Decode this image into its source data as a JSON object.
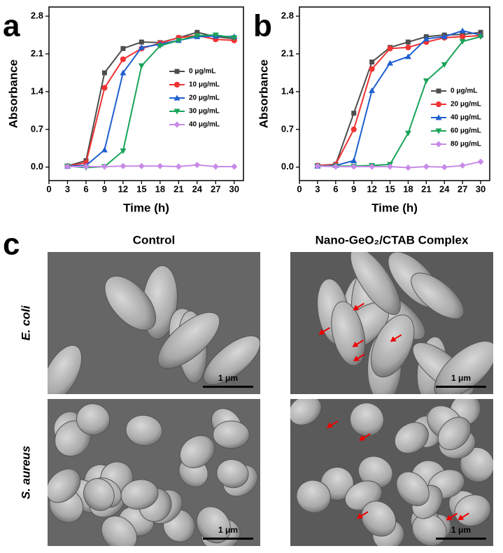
{
  "chart_data": [
    {
      "type": "line",
      "panel_label": "a",
      "xlabel": "Time (h)",
      "ylabel": "Absorbance",
      "x": [
        3,
        6,
        9,
        12,
        15,
        18,
        21,
        24,
        27,
        30
      ],
      "xlim": [
        0,
        31.5
      ],
      "xticks": [
        0,
        3,
        6,
        9,
        12,
        15,
        18,
        21,
        24,
        27,
        30
      ],
      "ylim": [
        -0.25,
        2.97
      ],
      "yticks": [
        {
          "value": 0,
          "label": "0.0"
        },
        0.7,
        1.4,
        2.1,
        2.8
      ],
      "legend": "center right",
      "series": [
        {
          "name": "0 μg/mL",
          "color": "#4d4d4d",
          "marker": "s",
          "values": [
            0.02,
            0.12,
            1.75,
            2.2,
            2.32,
            2.31,
            2.4,
            2.5,
            2.42,
            2.38
          ]
        },
        {
          "name": "10 μg/mL",
          "color": "#f03333",
          "marker": "o",
          "values": [
            0.02,
            0.08,
            1.47,
            2.0,
            2.2,
            2.3,
            2.4,
            2.44,
            2.37,
            2.35
          ]
        },
        {
          "name": "20 μg/mL",
          "color": "#1f5fd0",
          "marker": "^",
          "values": [
            0.02,
            0.03,
            0.32,
            1.75,
            2.22,
            2.28,
            2.35,
            2.42,
            2.43,
            2.42
          ]
        },
        {
          "name": "30 μg/mL",
          "color": "#1aa35a",
          "marker": "v",
          "values": [
            0.02,
            -0.01,
            0.01,
            0.3,
            1.88,
            2.25,
            2.35,
            2.44,
            2.45,
            2.4
          ]
        },
        {
          "name": "40 μg/mL",
          "color": "#c88ae8",
          "marker": "D",
          "values": [
            0.01,
            0.01,
            0.01,
            0.02,
            0.02,
            0.02,
            0.01,
            0.04,
            0.01,
            0.01
          ]
        }
      ]
    },
    {
      "type": "line",
      "panel_label": "b",
      "xlabel": "Time (h)",
      "ylabel": "Absorbance",
      "x": [
        3,
        6,
        9,
        12,
        15,
        18,
        21,
        24,
        27,
        30
      ],
      "xlim": [
        0,
        31.5
      ],
      "xticks": [
        0,
        3,
        6,
        9,
        12,
        15,
        18,
        21,
        24,
        27,
        30
      ],
      "ylim": [
        -0.25,
        2.97
      ],
      "yticks": [
        {
          "value": 0,
          "label": "0.0"
        },
        0.7,
        1.4,
        2.1,
        2.8
      ],
      "legend": "lower right",
      "series": [
        {
          "name": "0 μg/mL",
          "color": "#4d4d4d",
          "marker": "s",
          "values": [
            0.03,
            0.05,
            1.0,
            1.95,
            2.22,
            2.32,
            2.42,
            2.45,
            2.46,
            2.5
          ]
        },
        {
          "name": "20 μg/mL",
          "color": "#f03333",
          "marker": "o",
          "values": [
            0.03,
            0.05,
            0.7,
            1.82,
            2.2,
            2.22,
            2.32,
            2.4,
            2.42,
            2.44
          ]
        },
        {
          "name": "40 μg/mL",
          "color": "#1f5fd0",
          "marker": "^",
          "values": [
            0.02,
            0.03,
            0.12,
            1.42,
            1.93,
            2.05,
            2.38,
            2.42,
            2.53,
            2.45
          ]
        },
        {
          "name": "60 μg/mL",
          "color": "#1aa35a",
          "marker": "v",
          "values": [
            0.02,
            0.02,
            0.02,
            0.03,
            0.05,
            0.63,
            1.6,
            1.9,
            2.33,
            2.42
          ]
        },
        {
          "name": "80 μg/mL",
          "color": "#c88ae8",
          "marker": "D",
          "values": [
            0.02,
            0.01,
            0.01,
            0.01,
            0.01,
            -0.01,
            0.01,
            0.0,
            0.03,
            0.1
          ]
        }
      ]
    }
  ],
  "panel_c": {
    "label": "c",
    "columns": [
      "Control",
      "Nano-GeO₂/CTAB Complex"
    ],
    "rows": [
      "E. coli",
      "S. aureus"
    ],
    "scale_bar": "1 μm"
  }
}
